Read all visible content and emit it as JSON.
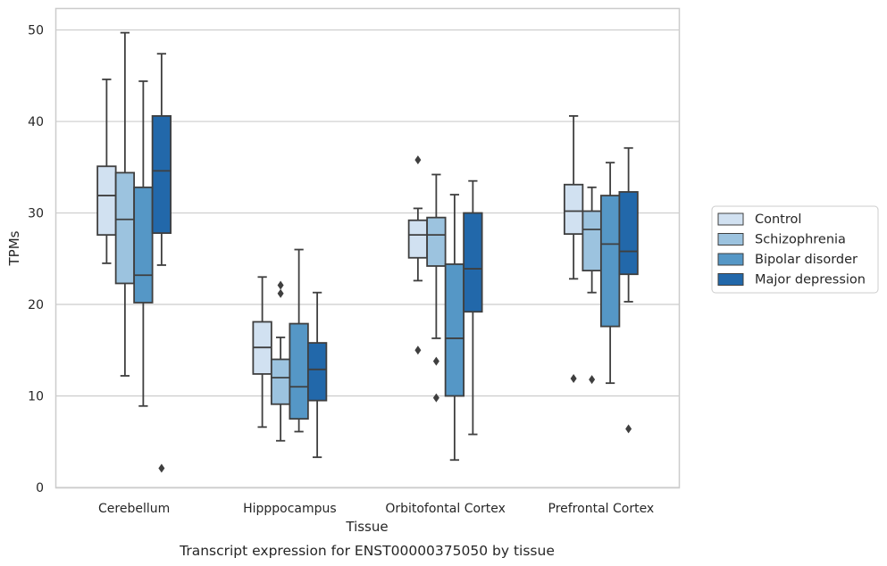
{
  "chart_data": {
    "type": "box",
    "title": "",
    "caption": "Transcript expression for ENST00000375050 by tissue",
    "xlabel": "Tissue",
    "ylabel": "TPMs",
    "ylim": [
      0,
      52.3
    ],
    "yticks": [
      0,
      10,
      20,
      30,
      40,
      50
    ],
    "grid": "horizontal",
    "legend_position": "right",
    "categories": [
      "Cerebellum",
      "Hipppocampus",
      "Orbitofontal Cortex",
      "Prefrontal Cortex"
    ],
    "series": [
      {
        "name": "Control",
        "color": "#d1e1f1",
        "boxes": [
          {
            "whislo": 24.5,
            "q1": 27.6,
            "med": 31.9,
            "q3": 35.1,
            "whishi": 44.6,
            "fliers": []
          },
          {
            "whislo": 6.6,
            "q1": 12.4,
            "med": 15.3,
            "q3": 18.1,
            "whishi": 23.0,
            "fliers": []
          },
          {
            "whislo": 22.6,
            "q1": 25.1,
            "med": 27.6,
            "q3": 29.2,
            "whishi": 30.5,
            "fliers": [
              35.8,
              15.0
            ]
          },
          {
            "whislo": 22.8,
            "q1": 27.7,
            "med": 30.2,
            "q3": 33.1,
            "whishi": 40.6,
            "fliers": [
              11.9
            ]
          }
        ]
      },
      {
        "name": "Schizophrenia",
        "color": "#9cc3df",
        "boxes": [
          {
            "whislo": 12.2,
            "q1": 22.3,
            "med": 29.3,
            "q3": 34.4,
            "whishi": 49.7,
            "fliers": []
          },
          {
            "whislo": 5.1,
            "q1": 9.1,
            "med": 12.0,
            "q3": 14.0,
            "whishi": 16.4,
            "fliers": [
              22.1,
              21.2
            ]
          },
          {
            "whislo": 16.3,
            "q1": 24.2,
            "med": 27.6,
            "q3": 29.5,
            "whishi": 34.2,
            "fliers": [
              13.8,
              9.8
            ]
          },
          {
            "whislo": 21.3,
            "q1": 23.7,
            "med": 28.2,
            "q3": 30.2,
            "whishi": 32.8,
            "fliers": [
              11.8
            ]
          }
        ]
      },
      {
        "name": "Bipolar disorder",
        "color": "#5597c6",
        "boxes": [
          {
            "whislo": 8.9,
            "q1": 20.2,
            "med": 23.2,
            "q3": 32.8,
            "whishi": 44.4,
            "fliers": []
          },
          {
            "whislo": 6.1,
            "q1": 7.5,
            "med": 11.0,
            "q3": 17.9,
            "whishi": 26.0,
            "fliers": []
          },
          {
            "whislo": 3.0,
            "q1": 10.0,
            "med": 16.3,
            "q3": 24.4,
            "whishi": 32.0,
            "fliers": []
          },
          {
            "whislo": 11.4,
            "q1": 17.6,
            "med": 26.6,
            "q3": 31.9,
            "whishi": 35.5,
            "fliers": []
          }
        ]
      },
      {
        "name": "Major depression",
        "color": "#2268aa",
        "boxes": [
          {
            "whislo": 24.3,
            "q1": 27.8,
            "med": 34.6,
            "q3": 40.6,
            "whishi": 47.4,
            "fliers": [
              2.1
            ]
          },
          {
            "whislo": 3.3,
            "q1": 9.5,
            "med": 12.9,
            "q3": 15.8,
            "whishi": 21.3,
            "fliers": []
          },
          {
            "whislo": 5.8,
            "q1": 19.2,
            "med": 23.9,
            "q3": 30.0,
            "whishi": 33.5,
            "fliers": []
          },
          {
            "whislo": 20.3,
            "q1": 23.3,
            "med": 25.8,
            "q3": 32.3,
            "whishi": 37.1,
            "fliers": [
              6.4
            ]
          }
        ]
      }
    ]
  }
}
